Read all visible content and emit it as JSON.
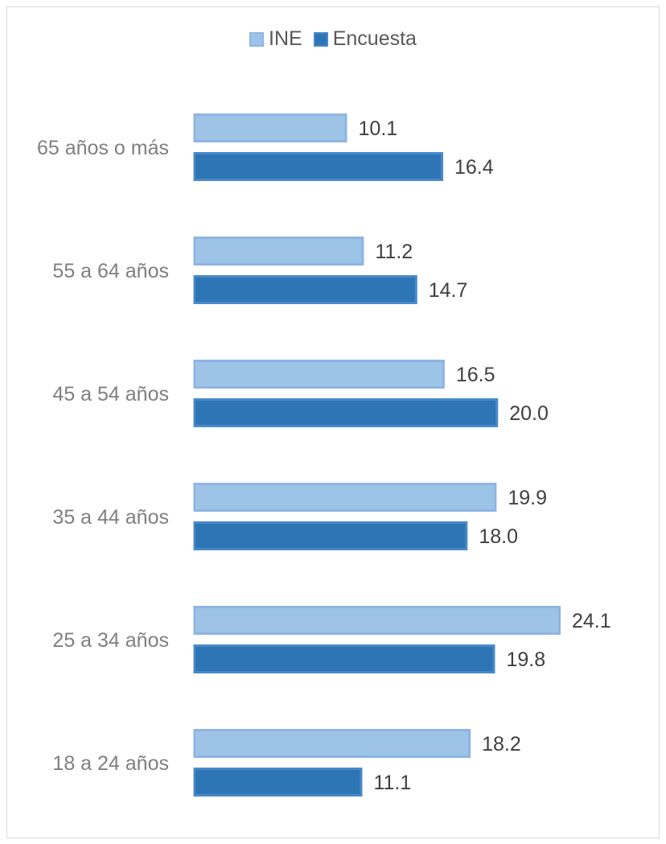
{
  "chart_data": {
    "type": "bar",
    "orientation": "horizontal",
    "categories": [
      "18 a 24 años",
      "25 a 34 años",
      "35 a 44 años",
      "45 a 54 años",
      "55 a 64 años",
      "65 años o más"
    ],
    "series": [
      {
        "name": "INE",
        "values": [
          18.2,
          24.1,
          19.9,
          16.5,
          11.2,
          10.1
        ],
        "color": "#9dc3e6",
        "border": "#8eb4e3"
      },
      {
        "name": "Encuesta",
        "values": [
          11.1,
          19.8,
          18.0,
          20.0,
          14.7,
          16.4
        ],
        "color": "#2e75b6",
        "border": "#4a89c8"
      }
    ],
    "value_labels": {
      "INE": [
        "18.2",
        "24.1",
        "19.9",
        "16.5",
        "11.2",
        "10.1"
      ],
      "Encuesta": [
        "11.1",
        "19.8",
        "18.0",
        "20.0",
        "14.7",
        "16.4"
      ]
    },
    "legend_position": "top",
    "grid": false,
    "xlim": [
      0,
      24.1
    ]
  }
}
